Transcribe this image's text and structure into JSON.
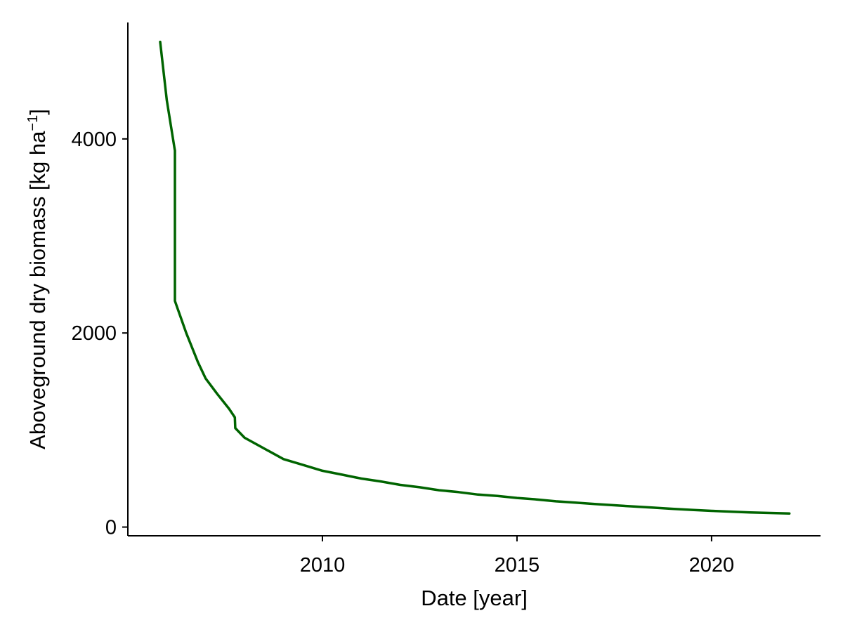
{
  "chart_data": {
    "type": "line",
    "title": "",
    "xlabel": "Date [year]",
    "ylabel_main": "Aboveground dry biomass [kg ha",
    "ylabel_sup": "−1",
    "ylabel_close": "]",
    "xlim": [
      2005.0,
      2022.8
    ],
    "ylim": [
      -90,
      5200
    ],
    "x_ticks": [
      2010,
      2015,
      2020
    ],
    "x_tick_labels": [
      "2010",
      "2015",
      "2020"
    ],
    "y_ticks": [
      0,
      2000,
      4000
    ],
    "y_tick_labels": [
      "0",
      "2000",
      "4000"
    ],
    "grid": false,
    "legend": "none",
    "series": [
      {
        "color": "#006400",
        "x": [
          2005.83,
          2006.0,
          2006.2,
          2006.21,
          2006.21,
          2006.5,
          2006.8,
          2007.0,
          2007.3,
          2007.6,
          2007.75,
          2007.76,
          2008.0,
          2008.5,
          2009.0,
          2009.5,
          2010.0,
          2010.5,
          2011.0,
          2011.5,
          2012.0,
          2012.5,
          2013.0,
          2013.5,
          2014.0,
          2014.5,
          2015.0,
          2015.5,
          2016.0,
          2016.5,
          2017.0,
          2017.5,
          2018.0,
          2018.5,
          2019.0,
          2019.5,
          2020.0,
          2020.5,
          2021.0,
          2021.5,
          2022.0
        ],
        "y": [
          5000,
          4400,
          3900,
          3880,
          2330,
          2000,
          1700,
          1530,
          1370,
          1220,
          1130,
          1020,
          920,
          810,
          700,
          640,
          580,
          540,
          500,
          470,
          435,
          410,
          380,
          360,
          335,
          320,
          300,
          285,
          265,
          252,
          237,
          225,
          212,
          200,
          188,
          177,
          167,
          159,
          150,
          145,
          140
        ]
      }
    ]
  }
}
